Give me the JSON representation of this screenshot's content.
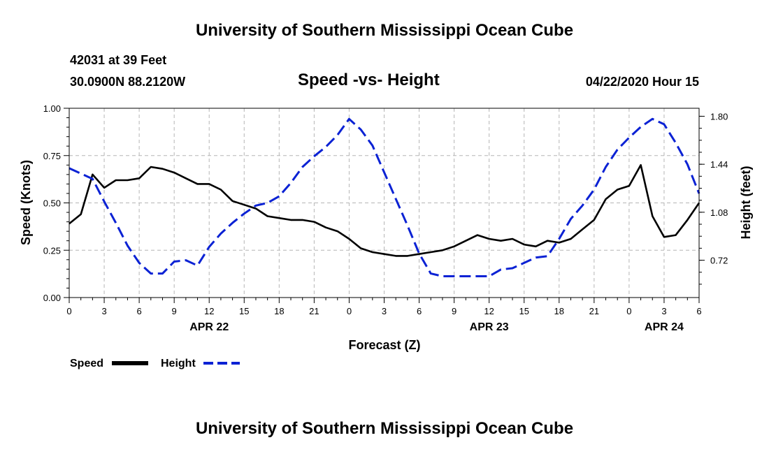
{
  "header": {
    "title": "University of Southern Mississippi Ocean Cube",
    "station": "42031 at 39 Feet",
    "location": "30.0900N 88.2120W",
    "datetime": "04/22/2020 Hour 15"
  },
  "footer": {
    "title": "University of Southern Mississippi Ocean Cube"
  },
  "chart_data": {
    "type": "line",
    "title": "Speed -vs- Height",
    "xlabel": "Forecast (Z)",
    "ylabel": "Speed (Knots)",
    "y2label": "Height (feet)",
    "x_tick_labels": [
      "0",
      "3",
      "6",
      "9",
      "12",
      "15",
      "18",
      "21",
      "0",
      "3",
      "6",
      "9",
      "12",
      "15",
      "18",
      "21",
      "0",
      "3",
      "6"
    ],
    "date_labels": [
      {
        "label": "APR 22",
        "hour": 12
      },
      {
        "label": "APR 23",
        "hour": 36
      },
      {
        "label": "APR 24",
        "hour": 51
      }
    ],
    "xlim": [
      0,
      54
    ],
    "ylim": [
      0,
      1.0
    ],
    "y_ticks": [
      "0.00",
      "0.25",
      "0.50",
      "0.75",
      "1.00"
    ],
    "y2lim": [
      0.44,
      1.86
    ],
    "y2_ticks": [
      "0.72",
      "1.08",
      "1.44",
      "1.80"
    ],
    "grid": true,
    "legend_position": "bottom-left",
    "series": [
      {
        "name": "Speed",
        "axis": "left",
        "color": "#000000",
        "style": "solid",
        "x": [
          0,
          1,
          2,
          3,
          4,
          5,
          6,
          7,
          8,
          9,
          10,
          11,
          12,
          13,
          14,
          15,
          16,
          17,
          18,
          19,
          20,
          21,
          22,
          23,
          24,
          25,
          26,
          27,
          28,
          29,
          30,
          31,
          32,
          33,
          34,
          35,
          36,
          37,
          38,
          39,
          40,
          41,
          42,
          43,
          44,
          45,
          46,
          47,
          48,
          49,
          50,
          51,
          52,
          53,
          54
        ],
        "values": [
          0.39,
          0.44,
          0.65,
          0.58,
          0.62,
          0.62,
          0.63,
          0.69,
          0.68,
          0.66,
          0.63,
          0.6,
          0.6,
          0.57,
          0.51,
          0.49,
          0.47,
          0.43,
          0.42,
          0.41,
          0.41,
          0.4,
          0.37,
          0.35,
          0.31,
          0.26,
          0.24,
          0.23,
          0.22,
          0.22,
          0.23,
          0.24,
          0.25,
          0.27,
          0.3,
          0.33,
          0.31,
          0.3,
          0.31,
          0.28,
          0.27,
          0.3,
          0.29,
          0.31,
          0.36,
          0.41,
          0.52,
          0.57,
          0.59,
          0.7,
          0.43,
          0.32,
          0.33,
          0.41,
          0.5
        ]
      },
      {
        "name": "Height",
        "axis": "right",
        "color": "#0b22d4",
        "style": "dashed",
        "x": [
          0,
          1,
          2,
          3,
          4,
          5,
          6,
          7,
          8,
          9,
          10,
          11,
          12,
          13,
          14,
          15,
          16,
          17,
          18,
          19,
          20,
          21,
          22,
          23,
          24,
          25,
          26,
          27,
          28,
          29,
          30,
          31,
          32,
          33,
          34,
          35,
          36,
          37,
          38,
          39,
          40,
          41,
          42,
          43,
          44,
          45,
          46,
          47,
          48,
          49,
          50,
          51,
          52,
          53,
          54
        ],
        "values": [
          1.41,
          1.37,
          1.33,
          1.16,
          1.0,
          0.83,
          0.7,
          0.62,
          0.62,
          0.71,
          0.72,
          0.68,
          0.82,
          0.92,
          1.0,
          1.07,
          1.13,
          1.15,
          1.2,
          1.3,
          1.42,
          1.5,
          1.57,
          1.66,
          1.78,
          1.7,
          1.58,
          1.38,
          1.18,
          0.98,
          0.77,
          0.62,
          0.6,
          0.6,
          0.6,
          0.6,
          0.6,
          0.65,
          0.66,
          0.7,
          0.74,
          0.75,
          0.88,
          1.03,
          1.13,
          1.25,
          1.42,
          1.55,
          1.64,
          1.72,
          1.78,
          1.74,
          1.6,
          1.44,
          1.22
        ]
      }
    ]
  }
}
